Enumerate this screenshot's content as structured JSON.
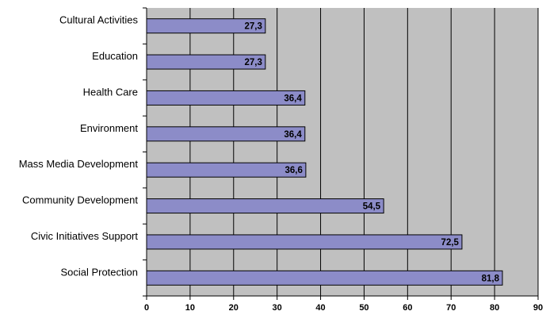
{
  "chart_data": {
    "type": "bar",
    "orientation": "horizontal",
    "categories": [
      "Cultural Activities",
      "Education",
      "Health Care",
      "Environment",
      "Mass Media Development",
      "Community Development",
      "Civic Initiatives Support",
      "Social Protection"
    ],
    "values": [
      27.3,
      27.3,
      36.4,
      36.4,
      36.6,
      54.5,
      72.5,
      81.8
    ],
    "value_labels": [
      "27,3",
      "27,3",
      "36,4",
      "36,4",
      "36,6",
      "54,5",
      "72,5",
      "81,8"
    ],
    "x_ticks": [
      "0",
      "10",
      "20",
      "30",
      "40",
      "50",
      "60",
      "70",
      "80",
      "90"
    ],
    "xlim": [
      0,
      90
    ],
    "grid": "vertical",
    "colors": {
      "bar_fill": "#8c8cc8",
      "bar_stroke": "#000000",
      "plot_bg": "#c0c0c0",
      "grid": "#000000"
    }
  }
}
